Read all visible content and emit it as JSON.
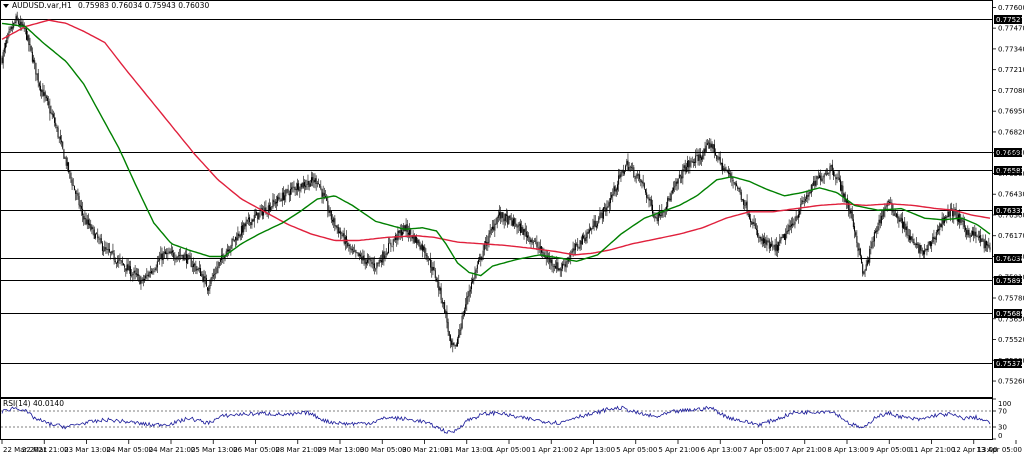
{
  "header": {
    "symbol": "AUDUSD.var,H1",
    "ohlc": "0.75983 0.76034 0.75943 0.76030"
  },
  "colors": {
    "candle": "#000000",
    "ma_fast": "#008000",
    "ma_slow": "#e0203c",
    "level_line": "#000000",
    "level_label_bg": "#000000",
    "rsi_line": "#1a1a9a",
    "rsi_guides": "#555555"
  },
  "chart_data": [
    {
      "type": "candlestick",
      "symbol": "AUDUSD.var",
      "timeframe": "H1",
      "ylim": [
        0.7516,
        0.7764
      ],
      "yticks": [
        "0.77600",
        "0.77470",
        "0.77340",
        "0.77210",
        "0.77080",
        "0.76950",
        "0.76820",
        "0.76690",
        "0.76560",
        "0.76430",
        "0.76300",
        "0.76170",
        "0.76040",
        "0.75910",
        "0.75780",
        "0.75650",
        "0.75520",
        "0.75390",
        "0.75260"
      ],
      "xticks": [
        "22 Mar 2021",
        "22 Mar 21:00",
        "23 Mar 13:00",
        "24 Mar 05:00",
        "24 Mar 21:00",
        "25 Mar 13:00",
        "26 Mar 05:00",
        "28 Mar 21:00",
        "29 Mar 13:00",
        "30 Mar 05:00",
        "30 Mar 21:00",
        "31 Mar 13:00",
        "1 Apr 05:00",
        "1 Apr 21:00",
        "2 Apr 13:00",
        "5 Apr 05:00",
        "5 Apr 21:00",
        "6 Apr 13:00",
        "7 Apr 05:00",
        "7 Apr 21:00",
        "8 Apr 13:00",
        "9 Apr 05:00",
        "11 Apr 21:00",
        "12 Apr 13:00",
        "13 Apr 05:00"
      ],
      "price_waypoints": [
        [
          0,
          0.7728
        ],
        [
          5,
          0.7741
        ],
        [
          12,
          0.7752
        ],
        [
          20,
          0.7745
        ],
        [
          32,
          0.7712
        ],
        [
          45,
          0.7688
        ],
        [
          58,
          0.7655
        ],
        [
          70,
          0.7628
        ],
        [
          88,
          0.7608
        ],
        [
          105,
          0.7598
        ],
        [
          120,
          0.7588
        ],
        [
          138,
          0.7605
        ],
        [
          155,
          0.7605
        ],
        [
          170,
          0.7594
        ],
        [
          176,
          0.7585
        ],
        [
          192,
          0.7608
        ],
        [
          210,
          0.7625
        ],
        [
          230,
          0.7636
        ],
        [
          252,
          0.7648
        ],
        [
          270,
          0.7652
        ],
        [
          282,
          0.7628
        ],
        [
          300,
          0.7606
        ],
        [
          320,
          0.7598
        ],
        [
          335,
          0.7614
        ],
        [
          345,
          0.7622
        ],
        [
          362,
          0.7608
        ],
        [
          372,
          0.759
        ],
        [
          380,
          0.7568
        ],
        [
          384,
          0.7548
        ],
        [
          388,
          0.7546
        ],
        [
          394,
          0.7565
        ],
        [
          400,
          0.7583
        ],
        [
          412,
          0.7608
        ],
        [
          425,
          0.763
        ],
        [
          438,
          0.7625
        ],
        [
          452,
          0.7616
        ],
        [
          465,
          0.7604
        ],
        [
          478,
          0.7596
        ],
        [
          492,
          0.761
        ],
        [
          505,
          0.7622
        ],
        [
          518,
          0.7635
        ],
        [
          528,
          0.7652
        ],
        [
          535,
          0.7662
        ],
        [
          548,
          0.765
        ],
        [
          560,
          0.7628
        ],
        [
          570,
          0.7638
        ],
        [
          585,
          0.766
        ],
        [
          600,
          0.7668
        ],
        [
          607,
          0.7675
        ],
        [
          615,
          0.7662
        ],
        [
          628,
          0.765
        ],
        [
          638,
          0.7634
        ],
        [
          648,
          0.7615
        ],
        [
          662,
          0.7608
        ],
        [
          675,
          0.7622
        ],
        [
          686,
          0.7638
        ],
        [
          698,
          0.7652
        ],
        [
          710,
          0.766
        ],
        [
          716,
          0.7652
        ],
        [
          728,
          0.7628
        ],
        [
          738,
          0.7592
        ],
        [
          748,
          0.762
        ],
        [
          758,
          0.7638
        ],
        [
          770,
          0.7626
        ],
        [
          780,
          0.7612
        ],
        [
          790,
          0.7606
        ],
        [
          798,
          0.7616
        ],
        [
          808,
          0.763
        ],
        [
          815,
          0.7632
        ],
        [
          826,
          0.762
        ],
        [
          836,
          0.7616
        ],
        [
          846,
          0.7608
        ]
      ],
      "ma_fast_waypoints": [
        [
          0,
          0.775
        ],
        [
          20,
          0.7748
        ],
        [
          35,
          0.7738
        ],
        [
          55,
          0.7726
        ],
        [
          70,
          0.7712
        ],
        [
          85,
          0.7692
        ],
        [
          100,
          0.7672
        ],
        [
          115,
          0.7648
        ],
        [
          130,
          0.7625
        ],
        [
          145,
          0.7612
        ],
        [
          160,
          0.7608
        ],
        [
          178,
          0.7604
        ],
        [
          190,
          0.7604
        ],
        [
          205,
          0.7612
        ],
        [
          220,
          0.7618
        ],
        [
          240,
          0.7625
        ],
        [
          255,
          0.7632
        ],
        [
          270,
          0.764
        ],
        [
          285,
          0.7642
        ],
        [
          300,
          0.7636
        ],
        [
          320,
          0.7626
        ],
        [
          345,
          0.7621
        ],
        [
          360,
          0.7622
        ],
        [
          372,
          0.762
        ],
        [
          380,
          0.7612
        ],
        [
          390,
          0.76
        ],
        [
          400,
          0.7594
        ],
        [
          410,
          0.7592
        ],
        [
          420,
          0.7598
        ],
        [
          440,
          0.7602
        ],
        [
          460,
          0.7605
        ],
        [
          478,
          0.7603
        ],
        [
          492,
          0.7601
        ],
        [
          510,
          0.7605
        ],
        [
          530,
          0.7618
        ],
        [
          550,
          0.7628
        ],
        [
          565,
          0.7632
        ],
        [
          580,
          0.7636
        ],
        [
          595,
          0.7642
        ],
        [
          612,
          0.7652
        ],
        [
          625,
          0.7654
        ],
        [
          640,
          0.7651
        ],
        [
          655,
          0.7646
        ],
        [
          670,
          0.7642
        ],
        [
          685,
          0.7644
        ],
        [
          700,
          0.7647
        ],
        [
          715,
          0.7644
        ],
        [
          730,
          0.7636
        ],
        [
          750,
          0.7633
        ],
        [
          770,
          0.7634
        ],
        [
          790,
          0.7628
        ],
        [
          805,
          0.7627
        ],
        [
          822,
          0.7628
        ],
        [
          835,
          0.7624
        ],
        [
          846,
          0.7618
        ]
      ],
      "ma_slow_waypoints": [
        [
          0,
          0.774
        ],
        [
          20,
          0.7748
        ],
        [
          40,
          0.7752
        ],
        [
          55,
          0.775
        ],
        [
          70,
          0.7745
        ],
        [
          88,
          0.7738
        ],
        [
          105,
          0.7722
        ],
        [
          125,
          0.7704
        ],
        [
          145,
          0.7686
        ],
        [
          165,
          0.7668
        ],
        [
          185,
          0.7652
        ],
        [
          205,
          0.764
        ],
        [
          225,
          0.7632
        ],
        [
          245,
          0.7624
        ],
        [
          265,
          0.7618
        ],
        [
          285,
          0.7614
        ],
        [
          305,
          0.7614
        ],
        [
          330,
          0.7616
        ],
        [
          355,
          0.7617
        ],
        [
          370,
          0.7616
        ],
        [
          390,
          0.7613
        ],
        [
          410,
          0.7612
        ],
        [
          430,
          0.7611
        ],
        [
          455,
          0.7609
        ],
        [
          475,
          0.7607
        ],
        [
          490,
          0.7605
        ],
        [
          505,
          0.7606
        ],
        [
          520,
          0.7608
        ],
        [
          540,
          0.7612
        ],
        [
          560,
          0.7615
        ],
        [
          580,
          0.7618
        ],
        [
          600,
          0.7622
        ],
        [
          620,
          0.7628
        ],
        [
          640,
          0.7632
        ],
        [
          660,
          0.7632
        ],
        [
          680,
          0.7634
        ],
        [
          700,
          0.7636
        ],
        [
          720,
          0.7637
        ],
        [
          740,
          0.7636
        ],
        [
          760,
          0.7637
        ],
        [
          780,
          0.7636
        ],
        [
          800,
          0.7634
        ],
        [
          815,
          0.7633
        ],
        [
          830,
          0.763
        ],
        [
          846,
          0.7628
        ]
      ],
      "horizontal_levels": [
        {
          "value": 0.77527,
          "label": "0.77527"
        },
        {
          "value": 0.76696,
          "label": "0.76696"
        },
        {
          "value": 0.76583,
          "label": "0.76583"
        },
        {
          "value": 0.76332,
          "label": "0.76332"
        },
        {
          "value": 0.7603,
          "label": "0.76030"
        },
        {
          "value": 0.75893,
          "label": "0.75893"
        },
        {
          "value": 0.75689,
          "label": "0.75689"
        },
        {
          "value": 0.75372,
          "label": "0.75372"
        }
      ],
      "current_price": "0.76030"
    },
    {
      "type": "line",
      "title": "RSI(14) 40.0140",
      "ylim": [
        0,
        100
      ],
      "yticks": [
        "100",
        "70",
        "30",
        "0"
      ],
      "guide_levels": [
        70,
        30
      ],
      "rsi_waypoints": [
        [
          0,
          68
        ],
        [
          10,
          78
        ],
        [
          18,
          74
        ],
        [
          28,
          52
        ],
        [
          40,
          38
        ],
        [
          55,
          30
        ],
        [
          70,
          40
        ],
        [
          90,
          48
        ],
        [
          110,
          42
        ],
        [
          128,
          35
        ],
        [
          145,
          38
        ],
        [
          160,
          52
        ],
        [
          176,
          40
        ],
        [
          190,
          58
        ],
        [
          205,
          62
        ],
        [
          225,
          64
        ],
        [
          245,
          60
        ],
        [
          262,
          66
        ],
        [
          278,
          44
        ],
        [
          295,
          38
        ],
        [
          315,
          40
        ],
        [
          330,
          54
        ],
        [
          345,
          50
        ],
        [
          360,
          44
        ],
        [
          372,
          30
        ],
        [
          382,
          16
        ],
        [
          388,
          20
        ],
        [
          398,
          46
        ],
        [
          412,
          62
        ],
        [
          425,
          66
        ],
        [
          440,
          55
        ],
        [
          452,
          50
        ],
        [
          465,
          44
        ],
        [
          478,
          40
        ],
        [
          492,
          56
        ],
        [
          505,
          62
        ],
        [
          518,
          74
        ],
        [
          530,
          78
        ],
        [
          545,
          64
        ],
        [
          560,
          55
        ],
        [
          575,
          68
        ],
        [
          595,
          74
        ],
        [
          607,
          78
        ],
        [
          620,
          56
        ],
        [
          635,
          44
        ],
        [
          648,
          36
        ],
        [
          662,
          48
        ],
        [
          678,
          66
        ],
        [
          695,
          68
        ],
        [
          710,
          70
        ],
        [
          716,
          60
        ],
        [
          726,
          38
        ],
        [
          738,
          26
        ],
        [
          748,
          56
        ],
        [
          760,
          64
        ],
        [
          772,
          54
        ],
        [
          786,
          48
        ],
        [
          800,
          60
        ],
        [
          812,
          62
        ],
        [
          822,
          52
        ],
        [
          834,
          54
        ],
        [
          846,
          40
        ]
      ]
    }
  ]
}
